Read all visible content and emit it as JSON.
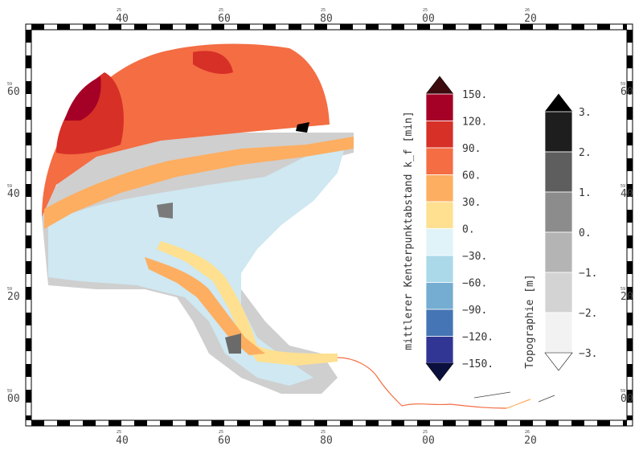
{
  "map": {
    "x_ticks": [
      {
        "small": "25",
        "major": "40"
      },
      {
        "small": "25",
        "major": "60"
      },
      {
        "small": "25",
        "major": "80"
      },
      {
        "small": "25",
        "major": "00"
      },
      {
        "small": "26",
        "major": "20"
      }
    ],
    "y_ticks": [
      {
        "small": "59",
        "major": "60"
      },
      {
        "small": "59",
        "major": "40"
      },
      {
        "small": "59",
        "major": "20"
      },
      {
        "small": "59",
        "major": "00"
      }
    ]
  },
  "colorbar_kf": {
    "title": "mittlerer Kenterpunktabstand k_f [min]",
    "labels": [
      "150.",
      "120.",
      "90.",
      "60.",
      "30.",
      "0.",
      "-30.",
      "-60.",
      "-90.",
      "-120.",
      "-150."
    ],
    "colors": [
      "#a50026",
      "#d73027",
      "#f46d43",
      "#fdae61",
      "#fee090",
      "#e0f3f8",
      "#abd9e9",
      "#74add1",
      "#4575b4",
      "#313695"
    ],
    "over_color": "#3d0a0e",
    "under_color": "#0b0f3d"
  },
  "colorbar_topo": {
    "title": "Topographie [m]",
    "labels": [
      "3.",
      "2.",
      "1.",
      "0.",
      "-1.",
      "-2.",
      "-3."
    ],
    "colors": [
      "#1e1e1e",
      "#5e5e5e",
      "#8c8c8c",
      "#b4b4b4",
      "#d3d3d3",
      "#f2f2f2"
    ],
    "over_color": "#000000",
    "under_color": "#ffffff"
  }
}
